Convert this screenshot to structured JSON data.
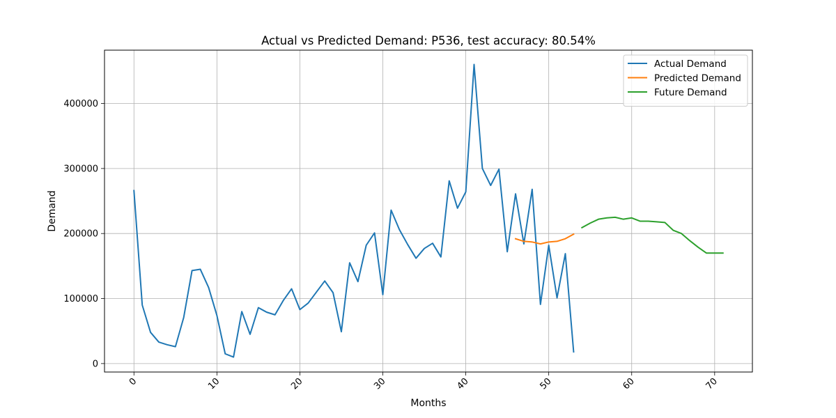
{
  "chart_data": {
    "type": "line",
    "title": "Actual vs Predicted Demand: P536, test accuracy: 80.54%",
    "xlabel": "Months",
    "ylabel": "Demand",
    "xlim": [
      -3.55,
      74.55
    ],
    "ylim": [
      -13000,
      482000
    ],
    "xticks": [
      0,
      10,
      20,
      30,
      40,
      50,
      60,
      70
    ],
    "yticks": [
      0,
      100000,
      200000,
      300000,
      400000
    ],
    "grid": true,
    "legend_position": "top-right",
    "series": [
      {
        "name": "Actual Demand",
        "color": "#1f77b4",
        "x": [
          0,
          1,
          2,
          3,
          4,
          5,
          6,
          7,
          8,
          9,
          10,
          11,
          12,
          13,
          14,
          15,
          16,
          17,
          18,
          19,
          20,
          21,
          22,
          23,
          24,
          25,
          26,
          27,
          28,
          29,
          30,
          31,
          32,
          33,
          34,
          35,
          36,
          37,
          38,
          39,
          40,
          41,
          42,
          43,
          44,
          45,
          46,
          47,
          48,
          49,
          50,
          51,
          52,
          53
        ],
        "y": [
          266000,
          90000,
          48000,
          33000,
          29000,
          26000,
          71000,
          143000,
          145000,
          117000,
          74000,
          15000,
          10000,
          80000,
          45000,
          86000,
          79000,
          75000,
          97000,
          115000,
          83000,
          93000,
          110000,
          127000,
          109000,
          49000,
          155000,
          126000,
          182000,
          201000,
          106000,
          236000,
          206000,
          183000,
          162000,
          177000,
          185000,
          164000,
          281000,
          239000,
          264000,
          460000,
          300000,
          274000,
          299000,
          172000,
          261000,
          184000,
          268000,
          91000,
          182000,
          101000,
          169000,
          18000
        ]
      },
      {
        "name": "Predicted Demand",
        "color": "#ff7f0e",
        "x": [
          46,
          47,
          48,
          49,
          50,
          51,
          52,
          53
        ],
        "y": [
          192000,
          188000,
          187000,
          184000,
          187000,
          188000,
          192000,
          199000
        ]
      },
      {
        "name": "Future Demand",
        "color": "#2ca02c",
        "x": [
          54,
          55,
          56,
          57,
          58,
          59,
          60,
          61,
          62,
          63,
          64,
          65,
          66,
          67,
          68,
          69,
          70,
          71
        ],
        "y": [
          209000,
          216000,
          222000,
          224000,
          225000,
          222000,
          224000,
          219000,
          219000,
          218000,
          217000,
          205000,
          200000,
          189000,
          179000,
          170000,
          170000,
          170000
        ]
      }
    ]
  }
}
